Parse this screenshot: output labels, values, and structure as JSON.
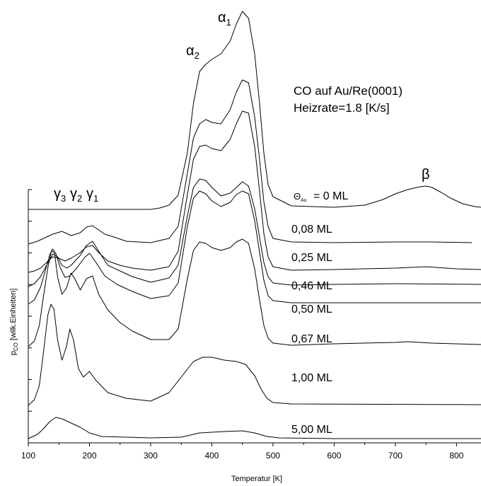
{
  "chart_data": {
    "type": "line",
    "title": "",
    "xlabel": "Temperatur [K]",
    "ylabel": "p",
    "ylabel_sub": "CO",
    "ylabel_rest": " [wilk.Einheiten]",
    "xlim": [
      100,
      840
    ],
    "xticks": [
      100,
      200,
      300,
      400,
      500,
      600,
      700,
      800
    ],
    "annotations": {
      "system_line1": "CO auf Au/Re(0001)",
      "system_line2": "Heizrate=1.8 [K/s]",
      "theta_symbol": "Θ",
      "theta_sub": "Au",
      "peak_alpha1": "α",
      "peak_alpha1_sub": "1",
      "peak_alpha2": "α",
      "peak_alpha2_sub": "2",
      "peak_beta": "β",
      "peak_gamma3": "γ",
      "peak_gamma3_sub": "3",
      "peak_gamma2": "γ",
      "peak_gamma2_sub": "2",
      "peak_gamma1": "γ",
      "peak_gamma1_sub": "1"
    },
    "series": [
      {
        "name": "= 0 ML",
        "label": "= 0 ML",
        "baseline": 296,
        "xmax": 840,
        "points": [
          [
            100,
            0
          ],
          [
            300,
            0
          ],
          [
            315,
            2
          ],
          [
            330,
            6
          ],
          [
            345,
            20
          ],
          [
            360,
            80
          ],
          [
            370,
            150
          ],
          [
            380,
            195
          ],
          [
            390,
            205
          ],
          [
            400,
            212
          ],
          [
            415,
            220
          ],
          [
            430,
            238
          ],
          [
            440,
            262
          ],
          [
            450,
            280
          ],
          [
            460,
            270
          ],
          [
            470,
            220
          ],
          [
            478,
            150
          ],
          [
            485,
            80
          ],
          [
            492,
            35
          ],
          [
            500,
            18
          ],
          [
            530,
            5
          ],
          [
            600,
            3
          ],
          [
            650,
            6
          ],
          [
            680,
            14
          ],
          [
            700,
            22
          ],
          [
            720,
            28
          ],
          [
            740,
            32
          ],
          [
            750,
            33
          ],
          [
            760,
            31
          ],
          [
            775,
            24
          ],
          [
            790,
            16
          ],
          [
            810,
            8
          ],
          [
            830,
            4
          ],
          [
            840,
            3
          ]
        ]
      },
      {
        "name": "0,08 ML",
        "label": "0,08 ML",
        "baseline": 345,
        "xmax": 825,
        "points": [
          [
            100,
            0
          ],
          [
            115,
            4
          ],
          [
            125,
            8
          ],
          [
            140,
            14
          ],
          [
            155,
            18
          ],
          [
            170,
            12
          ],
          [
            185,
            16
          ],
          [
            195,
            24
          ],
          [
            205,
            26
          ],
          [
            215,
            20
          ],
          [
            225,
            14
          ],
          [
            240,
            10
          ],
          [
            260,
            4
          ],
          [
            300,
            2
          ],
          [
            330,
            8
          ],
          [
            345,
            25
          ],
          [
            360,
            100
          ],
          [
            370,
            150
          ],
          [
            380,
            170
          ],
          [
            390,
            176
          ],
          [
            400,
            172
          ],
          [
            415,
            170
          ],
          [
            430,
            190
          ],
          [
            440,
            215
          ],
          [
            450,
            232
          ],
          [
            460,
            228
          ],
          [
            470,
            180
          ],
          [
            478,
            120
          ],
          [
            485,
            60
          ],
          [
            492,
            25
          ],
          [
            500,
            8
          ],
          [
            530,
            3
          ],
          [
            600,
            2
          ],
          [
            700,
            3
          ],
          [
            760,
            3
          ],
          [
            825,
            2
          ]
        ]
      },
      {
        "name": "0,25 ML",
        "label": "0,25 ML",
        "baseline": 385,
        "xmax": 840,
        "points": [
          [
            100,
            0
          ],
          [
            110,
            2
          ],
          [
            120,
            6
          ],
          [
            130,
            14
          ],
          [
            140,
            22
          ],
          [
            150,
            20
          ],
          [
            160,
            16
          ],
          [
            170,
            20
          ],
          [
            185,
            28
          ],
          [
            195,
            36
          ],
          [
            205,
            38
          ],
          [
            215,
            28
          ],
          [
            230,
            16
          ],
          [
            250,
            10
          ],
          [
            270,
            6
          ],
          [
            300,
            3
          ],
          [
            330,
            8
          ],
          [
            345,
            30
          ],
          [
            360,
            110
          ],
          [
            370,
            160
          ],
          [
            380,
            178
          ],
          [
            390,
            180
          ],
          [
            400,
            175
          ],
          [
            415,
            172
          ],
          [
            430,
            188
          ],
          [
            440,
            210
          ],
          [
            450,
            228
          ],
          [
            460,
            225
          ],
          [
            470,
            178
          ],
          [
            478,
            115
          ],
          [
            485,
            55
          ],
          [
            492,
            22
          ],
          [
            500,
            8
          ],
          [
            530,
            3
          ],
          [
            600,
            4
          ],
          [
            700,
            6
          ],
          [
            750,
            8
          ],
          [
            800,
            5
          ],
          [
            840,
            4
          ]
        ]
      },
      {
        "name": "0,46 ML",
        "label": "0,46 ML",
        "baseline": 405,
        "xmax": 840,
        "points": [
          [
            100,
            0
          ],
          [
            110,
            4
          ],
          [
            120,
            14
          ],
          [
            130,
            30
          ],
          [
            140,
            46
          ],
          [
            148,
            42
          ],
          [
            155,
            30
          ],
          [
            163,
            26
          ],
          [
            170,
            30
          ],
          [
            185,
            44
          ],
          [
            195,
            58
          ],
          [
            205,
            64
          ],
          [
            215,
            50
          ],
          [
            230,
            30
          ],
          [
            250,
            22
          ],
          [
            270,
            14
          ],
          [
            300,
            6
          ],
          [
            330,
            12
          ],
          [
            345,
            30
          ],
          [
            360,
            100
          ],
          [
            370,
            140
          ],
          [
            380,
            152
          ],
          [
            390,
            150
          ],
          [
            400,
            140
          ],
          [
            415,
            128
          ],
          [
            430,
            132
          ],
          [
            440,
            140
          ],
          [
            450,
            148
          ],
          [
            460,
            142
          ],
          [
            470,
            110
          ],
          [
            478,
            70
          ],
          [
            485,
            34
          ],
          [
            492,
            14
          ],
          [
            500,
            5
          ],
          [
            530,
            2
          ],
          [
            600,
            3
          ],
          [
            700,
            4
          ],
          [
            840,
            3
          ]
        ]
      },
      {
        "name": "0,50 ML",
        "label": "0,50 ML",
        "baseline": 430,
        "xmax": 840,
        "points": [
          [
            100,
            0
          ],
          [
            110,
            6
          ],
          [
            120,
            24
          ],
          [
            128,
            48
          ],
          [
            135,
            70
          ],
          [
            140,
            78
          ],
          [
            145,
            72
          ],
          [
            152,
            52
          ],
          [
            160,
            38
          ],
          [
            168,
            40
          ],
          [
            180,
            52
          ],
          [
            192,
            66
          ],
          [
            200,
            72
          ],
          [
            210,
            60
          ],
          [
            225,
            40
          ],
          [
            245,
            28
          ],
          [
            270,
            18
          ],
          [
            300,
            8
          ],
          [
            330,
            12
          ],
          [
            345,
            30
          ],
          [
            360,
            110
          ],
          [
            370,
            150
          ],
          [
            380,
            160
          ],
          [
            390,
            156
          ],
          [
            400,
            146
          ],
          [
            415,
            138
          ],
          [
            430,
            144
          ],
          [
            440,
            155
          ],
          [
            450,
            160
          ],
          [
            460,
            156
          ],
          [
            470,
            118
          ],
          [
            478,
            74
          ],
          [
            485,
            34
          ],
          [
            492,
            12
          ],
          [
            500,
            5
          ],
          [
            530,
            2
          ],
          [
            600,
            2
          ],
          [
            840,
            2
          ]
        ]
      },
      {
        "name": "0,67 ML",
        "label": "0,67 ML",
        "baseline": 490,
        "xmax": 840,
        "points": [
          [
            100,
            0
          ],
          [
            110,
            8
          ],
          [
            118,
            30
          ],
          [
            125,
            72
          ],
          [
            132,
            112
          ],
          [
            138,
            136
          ],
          [
            143,
            132
          ],
          [
            148,
            98
          ],
          [
            155,
            74
          ],
          [
            162,
            82
          ],
          [
            170,
            104
          ],
          [
            176,
            96
          ],
          [
            185,
            80
          ],
          [
            195,
            96
          ],
          [
            205,
            100
          ],
          [
            215,
            74
          ],
          [
            230,
            52
          ],
          [
            250,
            34
          ],
          [
            270,
            22
          ],
          [
            300,
            10
          ],
          [
            330,
            10
          ],
          [
            345,
            25
          ],
          [
            360,
            96
          ],
          [
            370,
            136
          ],
          [
            380,
            148
          ],
          [
            390,
            146
          ],
          [
            400,
            140
          ],
          [
            415,
            136
          ],
          [
            430,
            140
          ],
          [
            440,
            148
          ],
          [
            450,
            152
          ],
          [
            460,
            146
          ],
          [
            470,
            110
          ],
          [
            478,
            66
          ],
          [
            485,
            30
          ],
          [
            492,
            12
          ],
          [
            500,
            5
          ],
          [
            530,
            2
          ],
          [
            600,
            4
          ],
          [
            700,
            6
          ],
          [
            720,
            7
          ],
          [
            760,
            5
          ],
          [
            840,
            3
          ]
        ]
      },
      {
        "name": "1,00 ML",
        "label": "1,00 ML",
        "baseline": 573,
        "xmax": 840,
        "points": [
          [
            100,
            0
          ],
          [
            110,
            8
          ],
          [
            118,
            28
          ],
          [
            125,
            76
          ],
          [
            132,
            128
          ],
          [
            137,
            143
          ],
          [
            142,
            136
          ],
          [
            148,
            92
          ],
          [
            155,
            64
          ],
          [
            162,
            82
          ],
          [
            168,
            108
          ],
          [
            174,
            92
          ],
          [
            182,
            52
          ],
          [
            190,
            40
          ],
          [
            200,
            48
          ],
          [
            210,
            36
          ],
          [
            230,
            18
          ],
          [
            260,
            10
          ],
          [
            300,
            6
          ],
          [
            330,
            18
          ],
          [
            350,
            40
          ],
          [
            370,
            62
          ],
          [
            385,
            68
          ],
          [
            400,
            68
          ],
          [
            420,
            64
          ],
          [
            440,
            62
          ],
          [
            455,
            58
          ],
          [
            470,
            42
          ],
          [
            480,
            24
          ],
          [
            490,
            10
          ],
          [
            500,
            4
          ],
          [
            530,
            2
          ],
          [
            840,
            1
          ]
        ]
      },
      {
        "name": "5,00 ML",
        "label": "5,00 ML",
        "baseline": 620,
        "xmax": 840,
        "points": [
          [
            100,
            0
          ],
          [
            115,
            6
          ],
          [
            125,
            14
          ],
          [
            135,
            24
          ],
          [
            145,
            30
          ],
          [
            155,
            28
          ],
          [
            165,
            24
          ],
          [
            175,
            20
          ],
          [
            185,
            16
          ],
          [
            200,
            8
          ],
          [
            220,
            3
          ],
          [
            260,
            2
          ],
          [
            300,
            1
          ],
          [
            350,
            2
          ],
          [
            380,
            8
          ],
          [
            420,
            10
          ],
          [
            450,
            11
          ],
          [
            470,
            8
          ],
          [
            490,
            3
          ],
          [
            510,
            1
          ],
          [
            600,
            0
          ],
          [
            840,
            0
          ]
        ]
      }
    ]
  }
}
